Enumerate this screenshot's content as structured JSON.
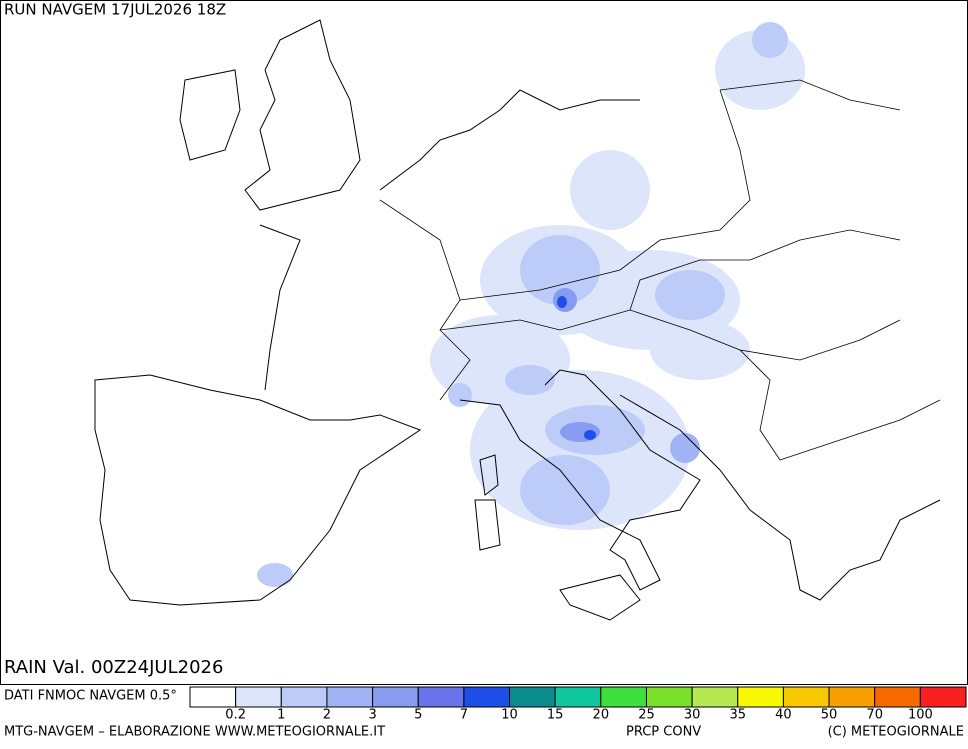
{
  "header": {
    "title": "RUN NAVGEM 17JUL2026 18Z"
  },
  "map": {
    "valid": "RAIN Val. 00Z24JUL2026"
  },
  "legend": {
    "source": "DATI FNMOC NAVGEM 0.5°",
    "thresholds": [
      0.2,
      1,
      2,
      3,
      5,
      7,
      10,
      15,
      20,
      25,
      30,
      35,
      40,
      50,
      70,
      100
    ],
    "colors": [
      "#ffffff",
      "#dde5fb",
      "#bccbf8",
      "#a0b3f5",
      "#879bf1",
      "#6b73ec",
      "#1e4fe8",
      "#0a8c8c",
      "#10c8a0",
      "#3ee03e",
      "#7ae02a",
      "#b6e852",
      "#f8f800",
      "#f8c800",
      "#f8a000",
      "#f86a00",
      "#f82020"
    ]
  },
  "footer": {
    "credit": "MTG-NAVGEM – ELABORAZIONE WWW.METEOGIORNALE.IT",
    "product": "PRCP CONV",
    "copyright": "(C) METEOGIORNALE"
  }
}
